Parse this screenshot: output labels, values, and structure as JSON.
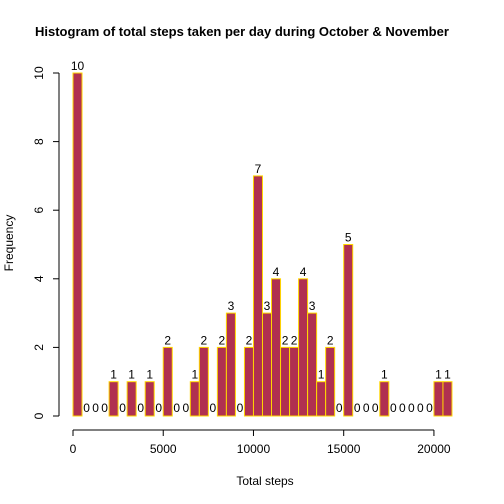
{
  "chart_data": {
    "type": "bar",
    "title": "Histogram of total steps taken per day during October & November",
    "xlabel": "Total steps",
    "ylabel": "Frequency",
    "bin_width": 500,
    "x_start": 0,
    "xlim": [
      0,
      21500
    ],
    "ylim": [
      0,
      10
    ],
    "x_ticks": [
      0,
      5000,
      10000,
      15000,
      20000
    ],
    "y_ticks": [
      0,
      2,
      4,
      6,
      8,
      10
    ],
    "values": [
      10,
      0,
      0,
      0,
      1,
      0,
      1,
      0,
      1,
      0,
      2,
      0,
      0,
      1,
      2,
      0,
      2,
      3,
      0,
      2,
      7,
      3,
      4,
      2,
      2,
      4,
      3,
      1,
      2,
      0,
      5,
      0,
      0,
      0,
      1,
      0,
      0,
      0,
      0,
      0,
      1,
      1
    ],
    "fill_color": "#B03050",
    "border_color": "#FFD700",
    "grid": false,
    "legend": "none"
  }
}
